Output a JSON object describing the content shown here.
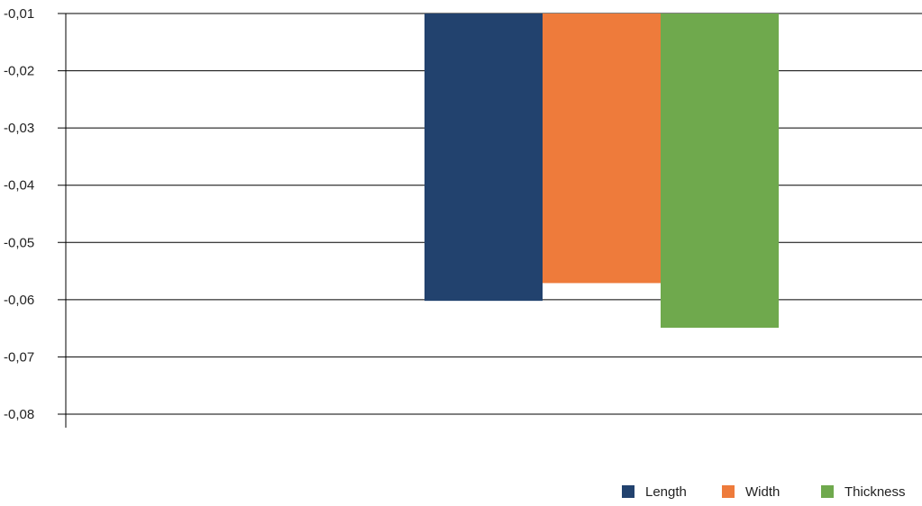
{
  "chart_data": {
    "type": "bar",
    "title": "",
    "xlabel": "",
    "ylabel": "",
    "categories": [
      ""
    ],
    "series": [
      {
        "name": "Length",
        "color": "#22426e",
        "values": [
          -0.0602
        ]
      },
      {
        "name": "Width",
        "color": "#ee7b3b",
        "values": [
          -0.0571
        ]
      },
      {
        "name": "Thickness",
        "color": "#6fa94d",
        "values": [
          -0.0649
        ]
      }
    ],
    "yticks": [
      "-0,01",
      "-0,02",
      "-0,03",
      "-0,04",
      "-0,05",
      "-0,06",
      "-0,07",
      "-0,08"
    ],
    "ytick_values": [
      -0.01,
      -0.02,
      -0.03,
      -0.04,
      -0.05,
      -0.06,
      -0.07,
      -0.08
    ],
    "ylim": [
      -0.08,
      -0.01
    ],
    "grid": true,
    "legend_position": "bottom-right"
  }
}
